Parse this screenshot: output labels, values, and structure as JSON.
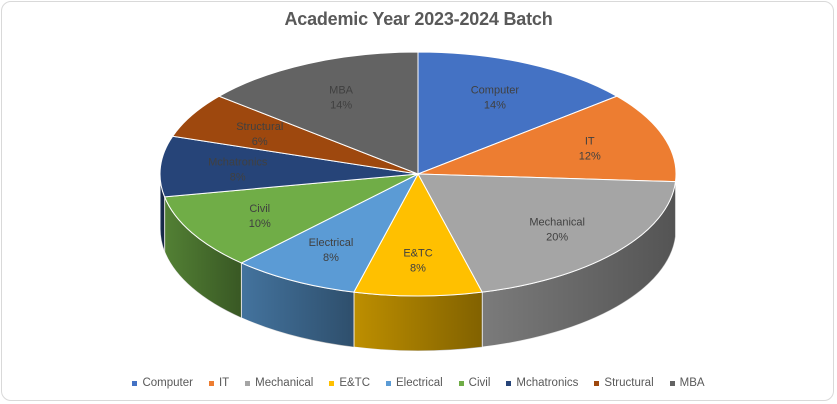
{
  "chart_data": {
    "type": "pie",
    "style": "3d-pie",
    "title": "Academic Year 2023-2024 Batch",
    "categories": [
      "Computer",
      "IT",
      "Mechanical",
      "E&TC",
      "Electrical",
      "Civil",
      "Mchatronics",
      "Structural",
      "MBA"
    ],
    "values": [
      14,
      12,
      20,
      8,
      8,
      10,
      8,
      6,
      14
    ],
    "value_labels": [
      "14%",
      "12%",
      "20%",
      "8%",
      "8%",
      "10%",
      "8%",
      "6%",
      "14%"
    ],
    "colors": [
      "#4472c4",
      "#ed7d31",
      "#a5a5a5",
      "#ffc000",
      "#5b9bd5",
      "#70ad47",
      "#264478",
      "#9e480e",
      "#636363"
    ],
    "legend_position": "bottom",
    "unit": "%"
  },
  "title": "Academic Year 2023-2024 Batch",
  "legend": [
    {
      "label": "Computer",
      "color": "#4472c4"
    },
    {
      "label": "IT",
      "color": "#ed7d31"
    },
    {
      "label": "Mechanical",
      "color": "#a5a5a5"
    },
    {
      "label": "E&TC",
      "color": "#ffc000"
    },
    {
      "label": "Electrical",
      "color": "#5b9bd5"
    },
    {
      "label": "Civil",
      "color": "#70ad47"
    },
    {
      "label": "Mchatronics",
      "color": "#264478"
    },
    {
      "label": "Structural",
      "color": "#9e480e"
    },
    {
      "label": "MBA",
      "color": "#636363"
    }
  ],
  "slices": [
    {
      "name": "Computer",
      "pct": "14%"
    },
    {
      "name": "IT",
      "pct": "12%"
    },
    {
      "name": "Mechanical",
      "pct": "20%"
    },
    {
      "name": "E&TC",
      "pct": "8%"
    },
    {
      "name": "Electrical",
      "pct": "8%"
    },
    {
      "name": "Civil",
      "pct": "10%"
    },
    {
      "name": "Mchatronics",
      "pct": "8%"
    },
    {
      "name": "Structural",
      "pct": "6%"
    },
    {
      "name": "MBA",
      "pct": "14%"
    }
  ]
}
